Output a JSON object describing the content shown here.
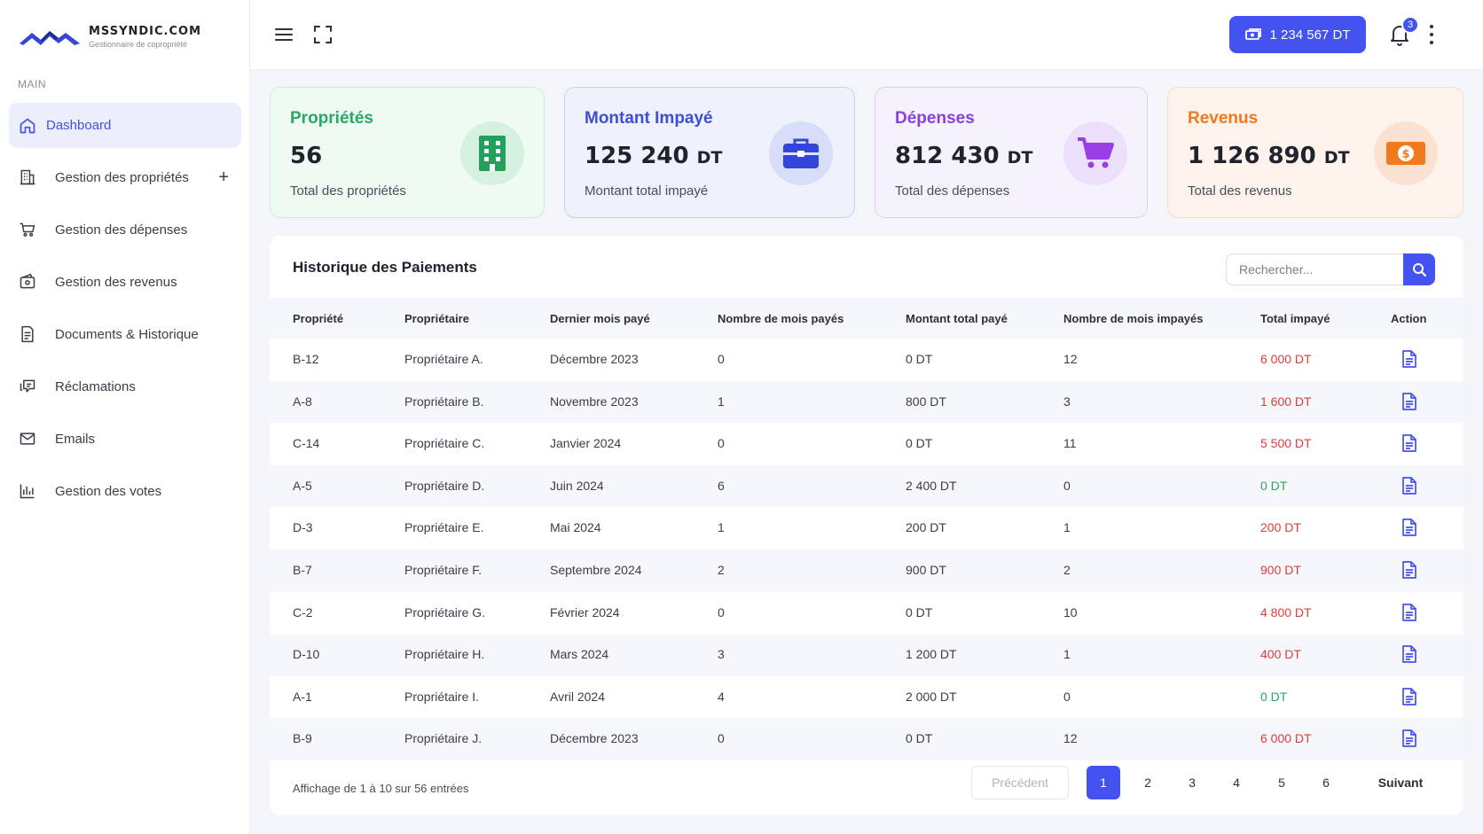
{
  "brand": {
    "name": "MSSYNDIC.COM",
    "tagline": "Gestionnaire de copropriété"
  },
  "sidebar": {
    "section": "MAIN",
    "items": [
      {
        "label": "Dashboard",
        "icon": "home-icon",
        "active": true
      },
      {
        "label": "Gestion des propriétés",
        "icon": "building-icon",
        "expandable": "+"
      },
      {
        "label": "Gestion des dépenses",
        "icon": "cart-icon"
      },
      {
        "label": "Gestion des revenus",
        "icon": "wallet-icon"
      },
      {
        "label": "Documents & Historique",
        "icon": "document-icon"
      },
      {
        "label": "Réclamations",
        "icon": "chat-icon"
      },
      {
        "label": "Emails",
        "icon": "mail-icon"
      },
      {
        "label": "Gestion des votes",
        "icon": "bar-chart-icon"
      }
    ]
  },
  "topbar": {
    "balance": "1 234 567 DT",
    "notifications": "3"
  },
  "cards": [
    {
      "title": "Propriétés",
      "value": "56",
      "unit": "",
      "subtitle": "Total des propriétés",
      "color": "#2aa866",
      "icon": "building-icon"
    },
    {
      "title": "Montant Impayé",
      "value": "125 240",
      "unit": "DT",
      "subtitle": "Montant total impayé",
      "color": "#3d4fd6",
      "icon": "briefcase-icon"
    },
    {
      "title": "Dépenses",
      "value": "812 430",
      "unit": "DT",
      "subtitle": "Total des dépenses",
      "color": "#8a3fe0",
      "icon": "cart-icon"
    },
    {
      "title": "Revenus",
      "value": "1 126 890",
      "unit": "DT",
      "subtitle": "Total des revenus",
      "color": "#f07a1a",
      "icon": "money-icon"
    }
  ],
  "table": {
    "title": "Historique des Paiements",
    "search_placeholder": "Rechercher...",
    "headers": [
      "Propriété",
      "Propriétaire",
      "Dernier mois payé",
      "Nombre de mois payés",
      "Montant total payé",
      "Nombre de mois impayés",
      "Total impayé",
      "Action"
    ],
    "rows": [
      [
        "B-12",
        "Propriétaire A.",
        "Décembre 2023",
        "0",
        "0 DT",
        "12",
        "6 000 DT"
      ],
      [
        "A-8",
        "Propriétaire B.",
        "Novembre 2023",
        "1",
        "800 DT",
        "3",
        "1 600 DT"
      ],
      [
        "C-14",
        "Propriétaire C.",
        "Janvier 2024",
        "0",
        "0 DT",
        "11",
        "5 500 DT"
      ],
      [
        "A-5",
        "Propriétaire D.",
        "Juin 2024",
        "6",
        "2 400 DT",
        "0",
        "0 DT"
      ],
      [
        "D-3",
        "Propriétaire E.",
        "Mai 2024",
        "1",
        "200 DT",
        "1",
        "200 DT"
      ],
      [
        "B-7",
        "Propriétaire F.",
        "Septembre 2024",
        "2",
        "900 DT",
        "2",
        "900 DT"
      ],
      [
        "C-2",
        "Propriétaire G.",
        "Février 2024",
        "0",
        "0 DT",
        "10",
        "4 800 DT"
      ],
      [
        "D-10",
        "Propriétaire H.",
        "Mars 2024",
        "3",
        "1 200 DT",
        "1",
        "400 DT"
      ],
      [
        "A-1",
        "Propriétaire I.",
        "Avril 2024",
        "4",
        "2 000 DT",
        "0",
        "0 DT"
      ],
      [
        "B-9",
        "Propriétaire J.",
        "Décembre 2023",
        "0",
        "0 DT",
        "12",
        "6 000 DT"
      ]
    ],
    "footer": "Affichage de 1 à 10 sur 56 entrées",
    "pagination": {
      "prev": "Précédent",
      "pages": [
        "1",
        "2",
        "3",
        "4",
        "5",
        "6"
      ],
      "current": "1",
      "next": "Suivant"
    }
  }
}
